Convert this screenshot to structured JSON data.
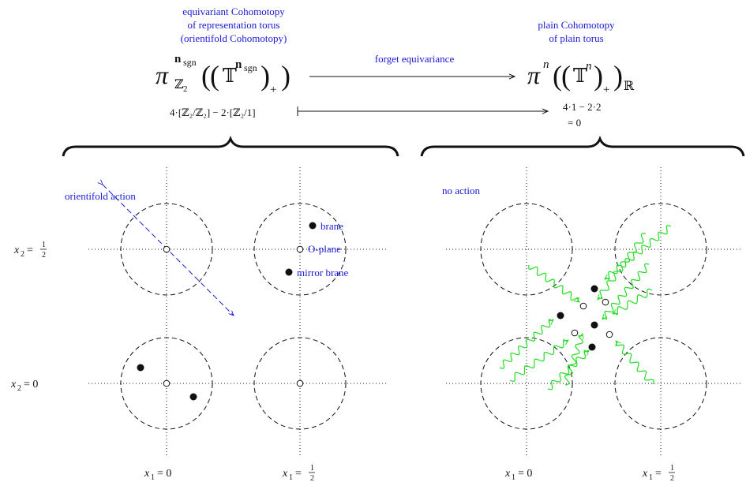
{
  "header": {
    "left_caption": [
      "equivariant Cohomotopy",
      "of representation torus",
      "(orientifold Cohomotopy)"
    ],
    "right_caption": [
      "plain Cohomotopy",
      "of plain torus"
    ],
    "arrow_label": "forget equivariance",
    "left_formula": {
      "pi": "π",
      "sup": "n",
      "sup_sub": "sgn",
      "group": "ℤ",
      "group_sub": "2",
      "torus": "𝕋",
      "plus": "+"
    },
    "right_formula": {
      "pi": "π",
      "sup": "n",
      "torus": "𝕋",
      "torus_sup": "n",
      "plus": "+",
      "field": "ℝ"
    },
    "left_degree": "4·[ℤ₂/ℤ₂] − 2·[ℤ₂/1]",
    "right_degree": [
      "4·1 − 2·2",
      "= 0"
    ]
  },
  "left_panel": {
    "action_label": "orientifold action",
    "labels": {
      "brane": "brane",
      "oplane": "O-plane",
      "mirror": "mirror brane"
    }
  },
  "right_panel": {
    "action_label": "no action"
  },
  "axes": {
    "y_top": {
      "var": "x",
      "sub": "2",
      "eq": "= ",
      "frac_num": "1",
      "frac_den": "2"
    },
    "y_bottom": {
      "var": "x",
      "sub": "2",
      "eq": "= 0"
    },
    "x_left": {
      "var": "x",
      "sub": "1",
      "eq": "= 0"
    },
    "x_right": {
      "var": "x",
      "sub": "1",
      "eq": "= ",
      "frac_num": "1",
      "frac_den": "2"
    }
  },
  "colors": {
    "caption": "#1a1ad6",
    "wavy": "#22dd22",
    "ink": "#111111"
  }
}
